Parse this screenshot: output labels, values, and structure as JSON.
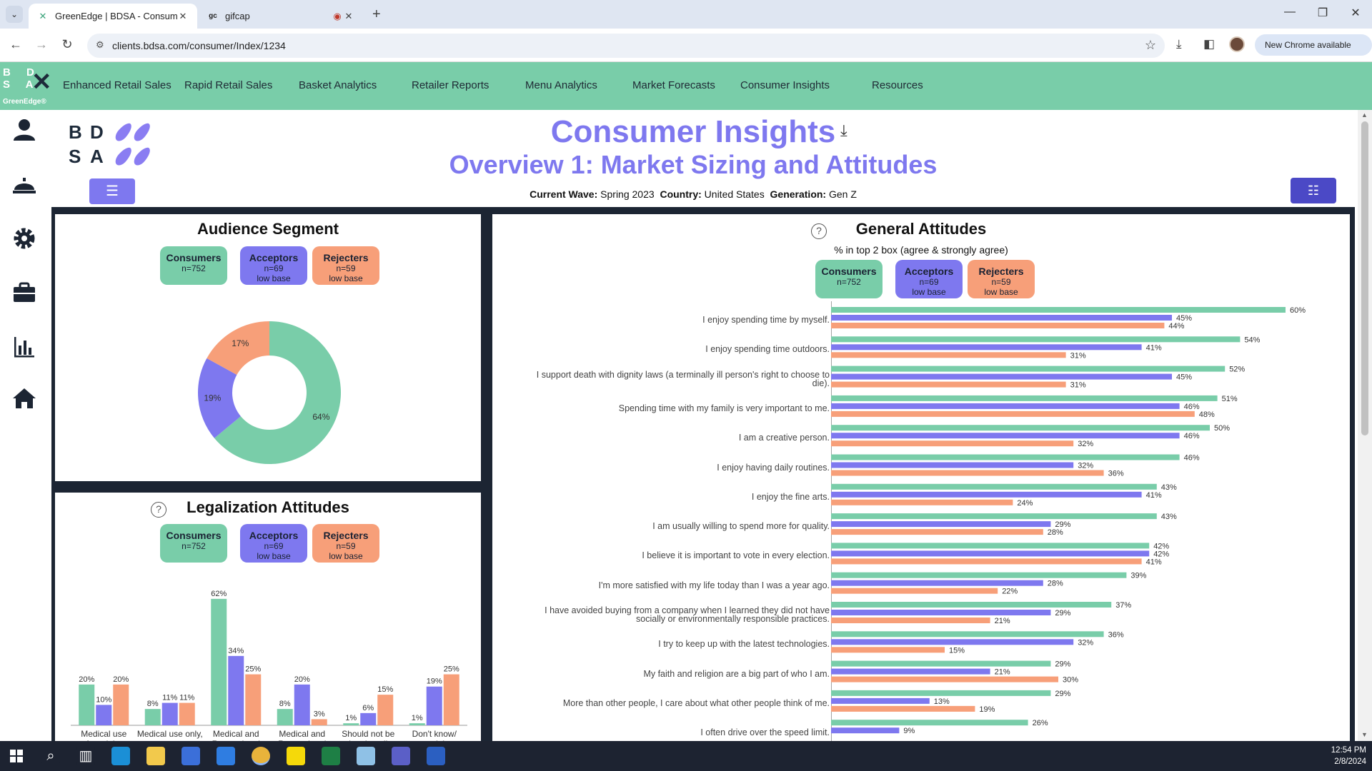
{
  "browser": {
    "tabs": [
      {
        "title": "GreenEdge | BDSA - Consume",
        "active": true,
        "icon": "greenedge-favicon"
      },
      {
        "title": "gifcap",
        "active": false,
        "icon": "gifcap-favicon"
      }
    ],
    "url": "clients.bdsa.com/consumer/Index/1234",
    "new_chrome_label": "New Chrome available"
  },
  "nav": {
    "brand_letters": "BD SA",
    "brand_name": "GreenEdge®",
    "items": [
      "Enhanced Retail Sales",
      "Rapid Retail Sales",
      "Basket Analytics",
      "Retailer Reports",
      "Menu Analytics",
      "Market Forecasts",
      "Consumer Insights",
      "Resources"
    ]
  },
  "rail_icons": [
    "user-icon",
    "service-bell-icon",
    "gear-icon",
    "briefcase-icon",
    "bar-chart-icon",
    "home-icon"
  ],
  "page": {
    "title": "Consumer Insights",
    "subtitle": "Overview 1: Market Sizing and Attitudes",
    "wave_label": "Current Wave:",
    "wave": "Spring 2023",
    "country_label": "Country:",
    "country": "United States",
    "generation_label": "Generation:",
    "generation": "Gen Z"
  },
  "segments": {
    "consumers": {
      "name": "Consumers",
      "n": "n=752"
    },
    "acceptors": {
      "name": "Acceptors",
      "n": "n=69",
      "note": "low base"
    },
    "rejecters": {
      "name": "Rejecters",
      "n": "n=59",
      "note": "low base"
    }
  },
  "colors": {
    "consumers": "#79cda9",
    "acceptors": "#7e78ef",
    "rejecters": "#f79f79"
  },
  "audience": {
    "title": "Audience Segment",
    "chart_data": {
      "type": "pie",
      "labels": [
        "Consumers",
        "Acceptors",
        "Rejecters"
      ],
      "values": [
        64,
        19,
        17
      ],
      "value_labels": [
        "64%",
        "19%",
        "17%"
      ]
    }
  },
  "attitudes": {
    "title": "General Attitudes",
    "subtitle": "% in top 2 box (agree & strongly agree)",
    "chart_data": {
      "type": "bar",
      "orientation": "horizontal",
      "categories": [
        "I enjoy spending time by myself.",
        "I enjoy spending time outdoors.",
        "I support death with dignity laws (a terminally ill person's right to choose to die).",
        "Spending time with my family is very important to me.",
        "I am a creative person.",
        "I enjoy having daily routines.",
        "I enjoy the fine arts.",
        "I am usually willing to spend more for quality.",
        "I believe it is important to vote in every election.",
        "I'm more satisfied with my life today than I was a year ago.",
        "I have avoided buying from a company when I learned they did not have socially or environmentally responsible practices.",
        "I try to keep up with the latest technologies.",
        "My faith and religion are a big part of who I am.",
        "More than other people, I care about what other people think of me.",
        "I often drive over the speed limit."
      ],
      "series": [
        {
          "name": "Consumers",
          "values": [
            60,
            54,
            52,
            51,
            50,
            46,
            43,
            43,
            42,
            39,
            37,
            36,
            29,
            29,
            26
          ]
        },
        {
          "name": "Acceptors",
          "values": [
            45,
            41,
            45,
            46,
            46,
            32,
            41,
            29,
            42,
            28,
            29,
            32,
            21,
            13,
            9
          ]
        },
        {
          "name": "Rejecters",
          "values": [
            44,
            31,
            31,
            48,
            32,
            36,
            24,
            28,
            41,
            22,
            21,
            15,
            30,
            19,
            null
          ]
        }
      ],
      "xlim": [
        0,
        100
      ]
    }
  },
  "legalization": {
    "title": "Legalization Attitudes",
    "chart_data": {
      "type": "bar",
      "categories": [
        "Medical use for adults",
        "Medical use only, at any",
        "Medical and Recreational",
        "Medical and Recreational",
        "Should not be legal at all",
        "Don't know/ no opinion"
      ],
      "series": [
        {
          "name": "Consumers",
          "values": [
            20,
            8,
            62,
            8,
            1,
            1
          ]
        },
        {
          "name": "Acceptors",
          "values": [
            10,
            11,
            34,
            20,
            6,
            19
          ]
        },
        {
          "name": "Rejecters",
          "values": [
            20,
            11,
            25,
            3,
            15,
            25
          ]
        }
      ],
      "ylim": [
        0,
        70
      ]
    }
  },
  "taskbar": {
    "time": "12:54 PM",
    "date": "2/8/2024",
    "apps": [
      "search-icon",
      "task-view-icon",
      "edge-icon",
      "file-explorer-icon",
      "store-icon",
      "mail-icon",
      "chrome-icon",
      "sticky-notes-icon",
      "excel-icon",
      "notepad-icon",
      "teams-icon",
      "word-icon"
    ]
  }
}
